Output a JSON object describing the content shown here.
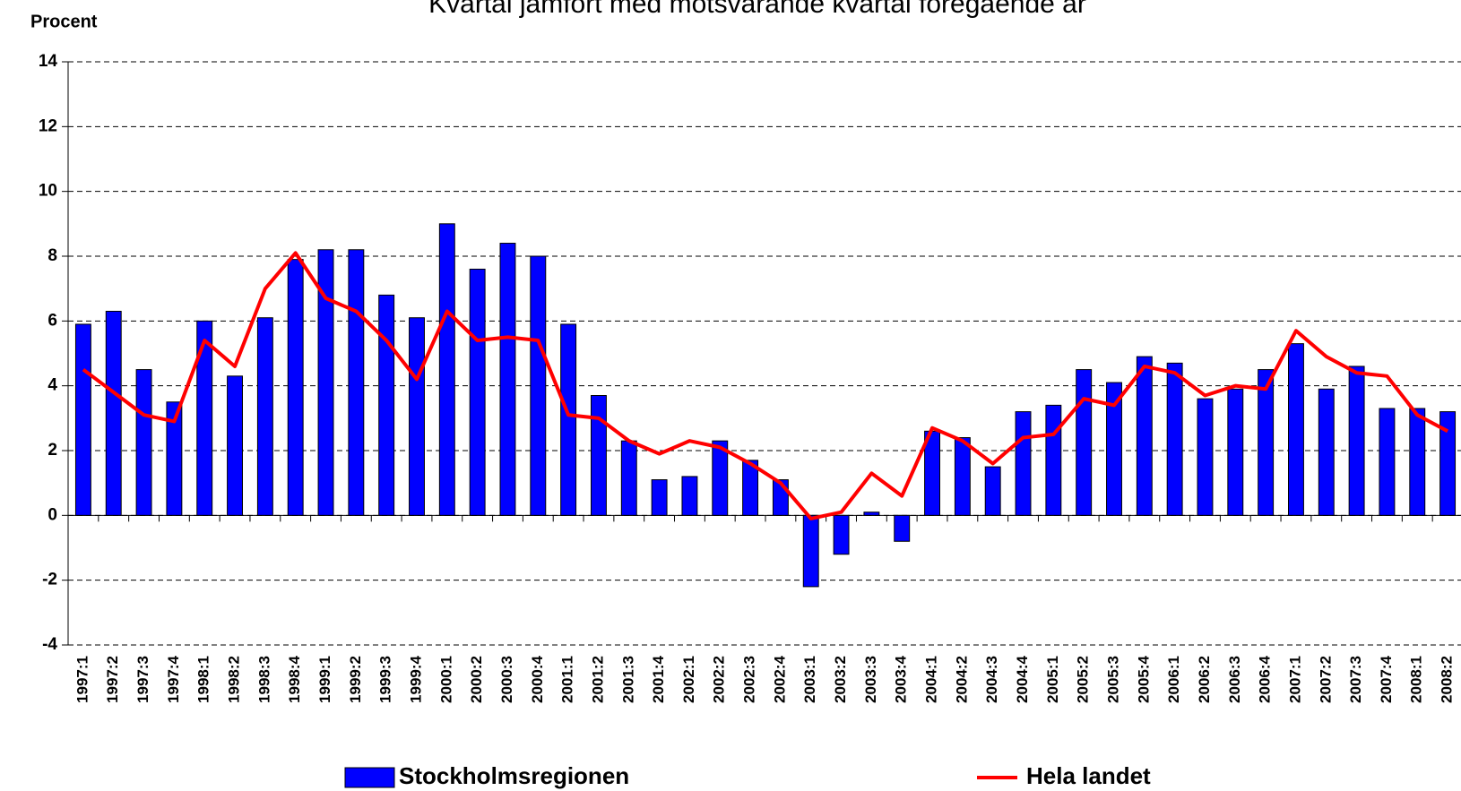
{
  "chart_data": {
    "type": "bar_line",
    "title": "Kvartal jämfört med motsvarande kvartal föregående år",
    "y_label": "Procent",
    "categories": [
      "1997:1",
      "1997:2",
      "1997:3",
      "1997:4",
      "1998:1",
      "1998:2",
      "1998:3",
      "1998:4",
      "1999:1",
      "1999:2",
      "1999:3",
      "1999:4",
      "2000:1",
      "2000:2",
      "2000:3",
      "2000:4",
      "2001:1",
      "2001:2",
      "2001:3",
      "2001:4",
      "2002:1",
      "2002:2",
      "2002:3",
      "2002:4",
      "2003:1",
      "2003:2",
      "2003:3",
      "2003:4",
      "2004:1",
      "2004:2",
      "2004:3",
      "2004:4",
      "2005:1",
      "2005:2",
      "2005:3",
      "2005:4",
      "2006:1",
      "2006:2",
      "2006:3",
      "2006:4",
      "2007:1",
      "2007:2",
      "2007:3",
      "2007:4",
      "2008:1",
      "2008:2"
    ],
    "series": [
      {
        "name": "Stockholmsregionen",
        "type": "bar",
        "color": "#0000ff",
        "values": [
          5.9,
          6.3,
          4.5,
          3.5,
          6.0,
          4.3,
          6.1,
          7.9,
          8.2,
          8.2,
          6.8,
          6.1,
          9.0,
          7.6,
          8.4,
          8.0,
          5.9,
          3.7,
          2.3,
          1.1,
          1.2,
          2.3,
          1.7,
          1.1,
          -2.2,
          -1.2,
          0.1,
          -0.8,
          2.6,
          2.4,
          1.5,
          3.2,
          3.4,
          4.5,
          4.1,
          4.9,
          4.7,
          3.6,
          3.9,
          4.5,
          5.3,
          3.9,
          4.6,
          3.3,
          3.3,
          3.2
        ]
      },
      {
        "name": "Hela landet",
        "type": "line",
        "color": "#ff0000",
        "values": [
          4.5,
          3.8,
          3.1,
          2.9,
          5.4,
          4.6,
          7.0,
          8.1,
          6.7,
          6.3,
          5.4,
          4.2,
          6.3,
          5.4,
          5.5,
          5.4,
          3.1,
          3.0,
          2.3,
          1.9,
          2.3,
          2.1,
          1.6,
          1.0,
          -0.1,
          0.1,
          1.3,
          0.6,
          2.7,
          2.3,
          1.6,
          2.4,
          2.5,
          3.6,
          3.4,
          4.6,
          4.4,
          3.7,
          4.0,
          3.9,
          5.7,
          4.9,
          4.4,
          4.3,
          3.1,
          2.6
        ]
      }
    ],
    "ylim": [
      -4,
      14
    ],
    "yticks": [
      -4,
      -2,
      0,
      2,
      4,
      6,
      8,
      10,
      12,
      14
    ],
    "grid": true
  }
}
